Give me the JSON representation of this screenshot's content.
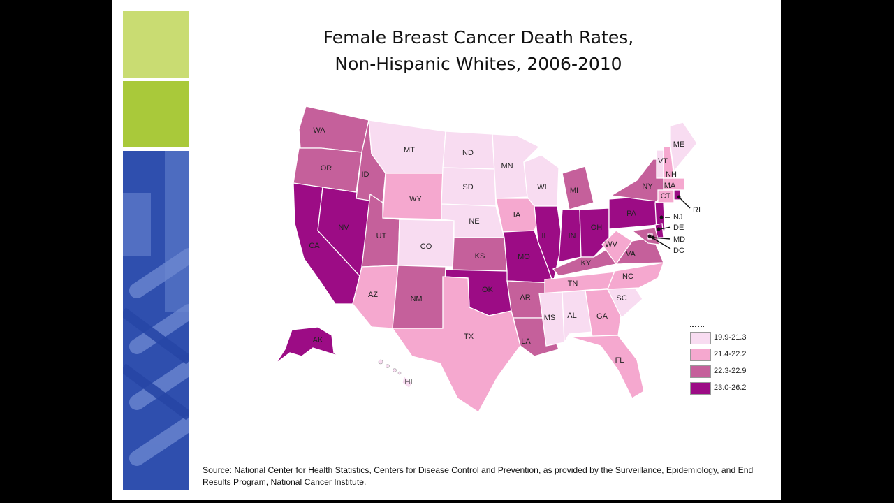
{
  "title": {
    "line1": "Female Breast Cancer Death Rates,",
    "line2": "Non-Hispanic Whites, 2006-2010"
  },
  "colors": {
    "c1": "#f8dcf1",
    "c2": "#f5a8cf",
    "c3": "#c5609b",
    "c4": "#9c0c85",
    "block_light_green": "#c9dc72",
    "block_green": "#a9c93a",
    "block_blue": "#3a5bb8"
  },
  "legend": [
    {
      "label": "19.9-21.3",
      "class": "c1"
    },
    {
      "label": "21.4-22.2",
      "class": "c2"
    },
    {
      "label": "22.3-22.9",
      "class": "c3"
    },
    {
      "label": "23.0-26.2",
      "class": "c4"
    }
  ],
  "states": {
    "WA": "c3",
    "OR": "c3",
    "CA": "c4",
    "NV": "c4",
    "ID": "c3",
    "MT": "c1",
    "WY": "c2",
    "UT": "c3",
    "AZ": "c2",
    "CO": "c1",
    "NM": "c3",
    "ND": "c1",
    "SD": "c1",
    "NE": "c1",
    "KS": "c3",
    "OK": "c4",
    "TX": "c2",
    "MN": "c1",
    "IA": "c2",
    "MO": "c4",
    "AR": "c3",
    "LA": "c3",
    "WI": "c1",
    "IL": "c4",
    "MI": "c3",
    "IN": "c4",
    "OH": "c4",
    "KY": "c3",
    "TN": "c2",
    "MS": "c1",
    "AL": "c1",
    "GA": "c2",
    "FL": "c2",
    "SC": "c1",
    "NC": "c2",
    "VA": "c3",
    "WV": "c2",
    "PA": "c4",
    "NY": "c3",
    "VT": "c1",
    "NH": "c2",
    "ME": "c1",
    "MA": "c2",
    "CT": "c2",
    "RI": "c4",
    "NJ": "c4",
    "DE": "c4",
    "MD": "c3",
    "DC": "c3",
    "AK": "c4",
    "HI": "c1"
  },
  "labels": {
    "WA": "WA",
    "OR": "OR",
    "CA": "CA",
    "NV": "NV",
    "ID": "ID",
    "MT": "MT",
    "WY": "WY",
    "UT": "UT",
    "AZ": "AZ",
    "CO": "CO",
    "NM": "NM",
    "ND": "ND",
    "SD": "SD",
    "NE": "NE",
    "KS": "KS",
    "OK": "OK",
    "TX": "TX",
    "MN": "MN",
    "IA": "IA",
    "MO": "MO",
    "AR": "AR",
    "LA": "LA",
    "WI": "WI",
    "IL": "IL",
    "MI": "MI",
    "IN": "IN",
    "OH": "OH",
    "KY": "KY",
    "TN": "TN",
    "MS": "MS",
    "AL": "AL",
    "GA": "GA",
    "FL": "FL",
    "SC": "SC",
    "NC": "NC",
    "VA": "VA",
    "WV": "WV",
    "PA": "PA",
    "NY": "NY",
    "VT": "VT",
    "NH": "NH",
    "ME": "ME",
    "MA": "MA",
    "CT": "CT",
    "RI": "RI",
    "NJ": "NJ",
    "DE": "DE",
    "MD": "MD",
    "DC": "DC",
    "AK": "AK",
    "HI": "HI"
  },
  "source": "Source: National Center for Health Statistics, Centers for Disease Control and Prevention, as provided by the Surveillance, Epidemiology, and End Results Program, National Cancer Institute."
}
